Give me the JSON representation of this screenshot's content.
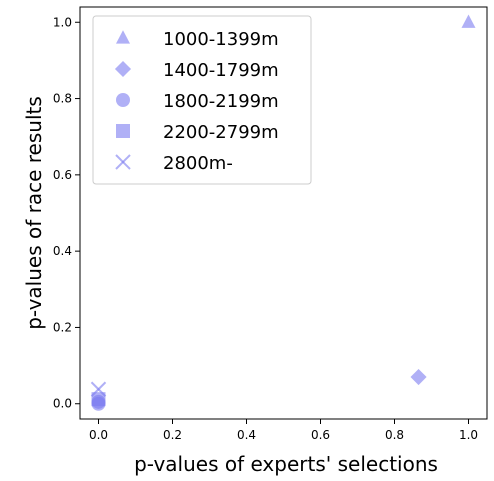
{
  "chart_data": {
    "type": "scatter",
    "xlabel": "p-values of experts' selections",
    "ylabel": "p-values of race results",
    "xlim": [
      -0.05,
      1.05
    ],
    "ylim": [
      -0.04,
      1.04
    ],
    "x_ticks": [
      0.0,
      0.2,
      0.4,
      0.6,
      0.8,
      1.0
    ],
    "y_ticks": [
      0.0,
      0.2,
      0.4,
      0.6,
      0.8,
      1.0
    ],
    "x_tick_labels": [
      "0.0",
      "0.2",
      "0.4",
      "0.6",
      "0.8",
      "1.0"
    ],
    "y_tick_labels": [
      "0.0",
      "0.2",
      "0.4",
      "0.6",
      "0.8",
      "1.0"
    ],
    "grid": false,
    "legend_position": "top-left",
    "marker_color": "#7b7bf0",
    "series": [
      {
        "name": "1000-1399m",
        "marker": "triangle",
        "points": [
          [
            1.0,
            1.0
          ]
        ]
      },
      {
        "name": "1400-1799m",
        "marker": "diamond",
        "points": [
          [
            0.865,
            0.07
          ]
        ]
      },
      {
        "name": "1800-2199m",
        "marker": "circle",
        "points": [
          [
            0.0,
            0.0
          ],
          [
            0.0,
            0.005
          ]
        ]
      },
      {
        "name": "2200-2799m",
        "marker": "square",
        "points": [
          [
            0.0,
            0.012
          ]
        ]
      },
      {
        "name": "2800m-",
        "marker": "x",
        "points": [
          [
            0.0,
            0.038
          ]
        ]
      }
    ]
  }
}
